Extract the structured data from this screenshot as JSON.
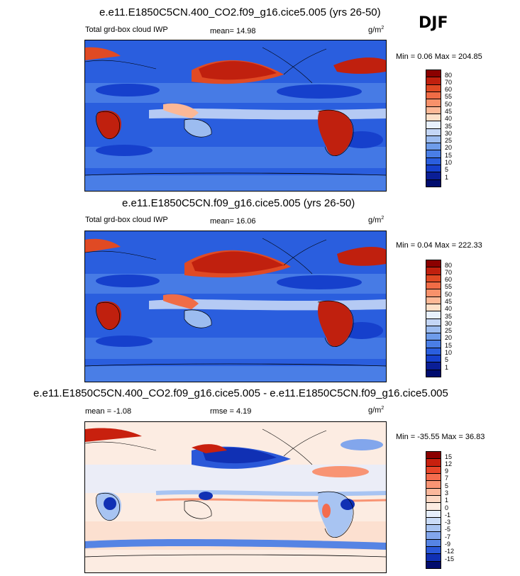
{
  "season": "DJF",
  "panels": [
    {
      "title": "e.e11.E1850C5CN.400_CO2.f09_g16.cice5.005 (yrs 26-50)",
      "left_label": "Total grd-box cloud IWP",
      "mean_text": "mean=  14.98",
      "units": "g/m",
      "units_sup": "2",
      "minmax": "Min =   0.06 Max = 204.85",
      "levels": [
        "80",
        "70",
        "60",
        "55",
        "50",
        "45",
        "40",
        "35",
        "30",
        "25",
        "20",
        "15",
        "10",
        "5",
        "1"
      ]
    },
    {
      "title": "e.e11.E1850C5CN.f09_g16.cice5.005 (yrs 26-50)",
      "left_label": "Total grd-box cloud IWP",
      "mean_text": "mean=  16.06",
      "units": "g/m",
      "units_sup": "2",
      "minmax": "Min =   0.04 Max = 222.33",
      "levels": [
        "80",
        "70",
        "60",
        "55",
        "50",
        "45",
        "40",
        "35",
        "30",
        "25",
        "20",
        "15",
        "10",
        "5",
        "1"
      ]
    },
    {
      "title": "e.e11.E1850C5CN.400_CO2.f09_g16.cice5.005 - e.e11.E1850C5CN.f09_g16.cice5.005",
      "left_label": "mean =  -1.08",
      "mean_text": "rmse =   4.19",
      "units": "g/m",
      "units_sup": "2",
      "minmax": "Min = -35.55 Max =  36.83",
      "levels": [
        "15",
        "12",
        "9",
        "7",
        "5",
        "3",
        "1",
        "0",
        "-1",
        "-3",
        "-5",
        "-7",
        "-9",
        "-12",
        "-15"
      ]
    }
  ],
  "colors": {
    "abs_scale": [
      "#8b0000",
      "#c0200e",
      "#e04a24",
      "#f06c46",
      "#f8916a",
      "#fcb896",
      "#fde0c8",
      "#e8f0fc",
      "#c4d6f6",
      "#9cbcf0",
      "#6e9cea",
      "#4a7ee6",
      "#2a5ede",
      "#1640cc",
      "#0a1e96",
      "#000c6e"
    ],
    "diff_scale": [
      "#8b0000",
      "#c8200e",
      "#e8462a",
      "#f46c4e",
      "#f89474",
      "#fbb89c",
      "#fcd8c4",
      "#fcece2",
      "#e6eefc",
      "#cadcf8",
      "#a8c4f2",
      "#82a6ec",
      "#5684e4",
      "#2a58d8",
      "#1030b4",
      "#000c6e"
    ]
  },
  "chart_data": [
    {
      "type": "heatmap",
      "title": "e.e11.E1850C5CN.400_CO2.f09_g16.cice5.005 (yrs 26-50)",
      "variable": "Total grd-box cloud IWP",
      "units": "g/m2",
      "mean": 14.98,
      "min": 0.06,
      "max": 204.85,
      "contour_levels": [
        1,
        5,
        10,
        15,
        20,
        25,
        30,
        35,
        40,
        45,
        50,
        55,
        60,
        70,
        80
      ]
    },
    {
      "type": "heatmap",
      "title": "e.e11.E1850C5CN.f09_g16.cice5.005 (yrs 26-50)",
      "variable": "Total grd-box cloud IWP",
      "units": "g/m2",
      "mean": 16.06,
      "min": 0.04,
      "max": 222.33,
      "contour_levels": [
        1,
        5,
        10,
        15,
        20,
        25,
        30,
        35,
        40,
        45,
        50,
        55,
        60,
        70,
        80
      ]
    },
    {
      "type": "heatmap",
      "title": "e.e11.E1850C5CN.400_CO2.f09_g16.cice5.005 - e.e11.E1850C5CN.f09_g16.cice5.005",
      "units": "g/m2",
      "mean": -1.08,
      "rmse": 4.19,
      "min": -35.55,
      "max": 36.83,
      "contour_levels": [
        -15,
        -12,
        -9,
        -7,
        -5,
        -3,
        -1,
        0,
        1,
        3,
        5,
        7,
        9,
        12,
        15
      ]
    }
  ]
}
